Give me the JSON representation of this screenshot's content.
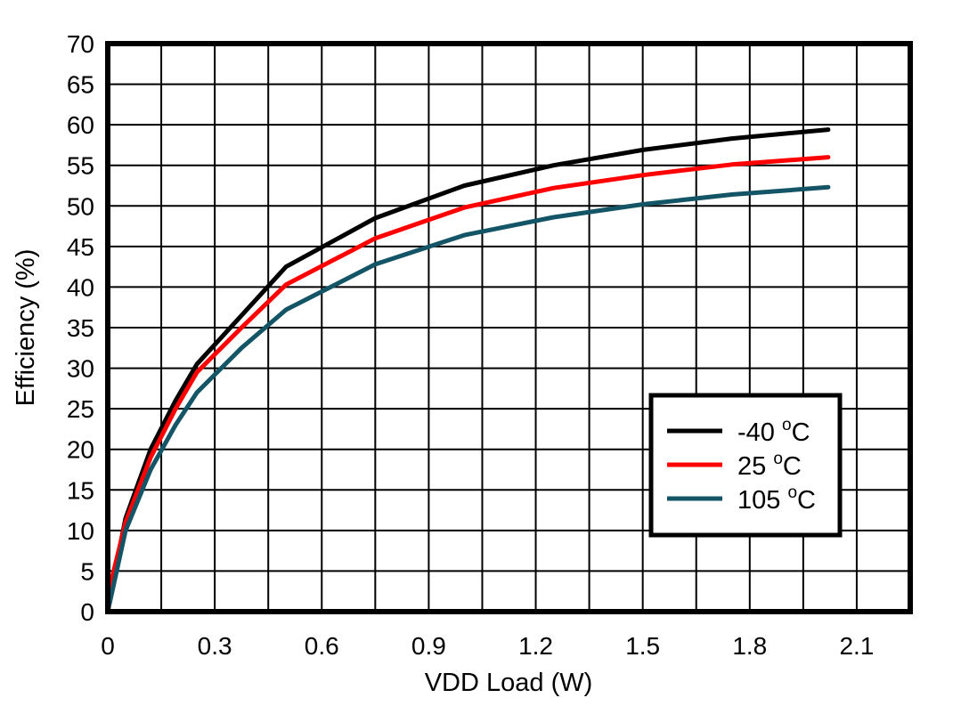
{
  "chart_data": {
    "type": "line",
    "title": "",
    "xlabel": "VDD Load (W)",
    "ylabel": "Efficiency (%)",
    "xlim": [
      0,
      2.25
    ],
    "ylim": [
      0,
      70
    ],
    "x_ticks": [
      "0",
      "0.3",
      "0.6",
      "0.9",
      "1.2",
      "1.5",
      "1.8",
      "2.1"
    ],
    "x_tick_values": [
      0,
      0.3,
      0.6,
      0.9,
      1.2,
      1.5,
      1.8,
      2.1
    ],
    "y_ticks": [
      "0",
      "5",
      "10",
      "15",
      "20",
      "25",
      "30",
      "35",
      "40",
      "45",
      "50",
      "55",
      "60",
      "65",
      "70"
    ],
    "y_tick_values": [
      0,
      5,
      10,
      15,
      20,
      25,
      30,
      35,
      40,
      45,
      50,
      55,
      60,
      65,
      70
    ],
    "grid": true,
    "grid_x_step": 0.15,
    "grid_y_step": 5,
    "legend_position": "lower right (inside)",
    "series": [
      {
        "name": "-40 °C",
        "label_main": "-40 ",
        "label_sup": "o",
        "label_unit": "C",
        "color": "#000000",
        "x": [
          0,
          0.05,
          0.12,
          0.19,
          0.25,
          0.375,
          0.5,
          0.75,
          1.0,
          1.25,
          1.5,
          1.75,
          2.02
        ],
        "y": [
          0.5,
          11.5,
          20,
          26,
          30.5,
          36.5,
          42.5,
          48.5,
          52.5,
          55,
          56.9,
          58.3,
          59.4
        ]
      },
      {
        "name": "25 °C",
        "label_main": "25 ",
        "label_sup": "o",
        "label_unit": "C",
        "color": "#ff0000",
        "x": [
          0,
          0.05,
          0.12,
          0.19,
          0.25,
          0.375,
          0.5,
          0.75,
          1.0,
          1.25,
          1.5,
          1.75,
          2.02
        ],
        "y": [
          2,
          11,
          19,
          25,
          29.5,
          35,
          40.3,
          46,
          49.8,
          52.2,
          53.8,
          55.1,
          56
        ]
      },
      {
        "name": "105 °C",
        "label_main": "105 ",
        "label_sup": "o",
        "label_unit": "C",
        "color": "#135566",
        "x": [
          0,
          0.05,
          0.12,
          0.19,
          0.25,
          0.375,
          0.5,
          0.75,
          1.0,
          1.25,
          1.5,
          1.75,
          2.02
        ],
        "y": [
          0,
          10,
          17.5,
          23,
          27,
          32.5,
          37.2,
          42.8,
          46.4,
          48.6,
          50.2,
          51.4,
          52.3
        ]
      }
    ]
  }
}
